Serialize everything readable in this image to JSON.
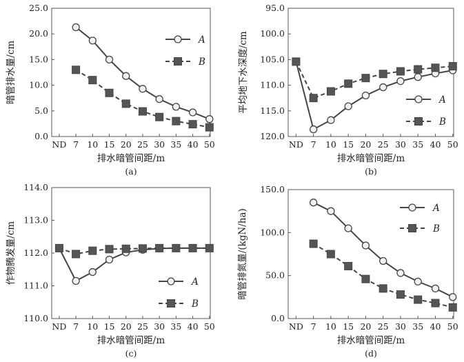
{
  "chart_data": [
    {
      "type": "line",
      "panel_label": "(a)",
      "xlabel": "排水暗管间距/m",
      "ylabel": "暗管排水量/cm",
      "categories": [
        "ND",
        "7",
        "10",
        "15",
        "20",
        "25",
        "30",
        "35",
        "40",
        "50"
      ],
      "ylim": [
        0,
        25
      ],
      "yticks": [
        "0.0",
        "5.0",
        "10.0",
        "15.0",
        "20.0",
        "25.0"
      ],
      "y_reversed": false,
      "legend_position": "top-right",
      "series": [
        {
          "name": "A",
          "style": "solid-circle",
          "values": [
            null,
            21.3,
            18.7,
            15.0,
            11.8,
            9.3,
            7.3,
            5.8,
            4.7,
            3.4
          ]
        },
        {
          "name": "B",
          "style": "dashed-square",
          "values": [
            null,
            13.0,
            11.0,
            8.5,
            6.4,
            4.9,
            3.8,
            3.0,
            2.4,
            1.8
          ]
        }
      ]
    },
    {
      "type": "line",
      "panel_label": "(b)",
      "xlabel": "排水暗管间距/m",
      "ylabel": "平均地下水深度/cm",
      "categories": [
        "ND",
        "7",
        "10",
        "15",
        "20",
        "25",
        "30",
        "35",
        "40",
        "50"
      ],
      "ylim": [
        95,
        120
      ],
      "yticks": [
        "95.0",
        "100.0",
        "105.0",
        "110.0",
        "115.0",
        "120.0"
      ],
      "y_reversed": true,
      "legend_position": "middle-right",
      "series": [
        {
          "name": "A",
          "style": "solid-circle",
          "values": [
            105.4,
            118.6,
            116.8,
            114.1,
            112.0,
            110.4,
            109.2,
            108.4,
            107.7,
            107.1
          ]
        },
        {
          "name": "B",
          "style": "dashed-square",
          "values": [
            105.4,
            112.5,
            111.2,
            109.7,
            108.6,
            107.8,
            107.3,
            106.9,
            106.6,
            106.3
          ]
        }
      ]
    },
    {
      "type": "line",
      "panel_label": "(c)",
      "xlabel": "排水暗管间距/m",
      "ylabel": "作物腾发量/cm",
      "categories": [
        "ND",
        "7",
        "10",
        "15",
        "20",
        "25",
        "30",
        "35",
        "40",
        "50"
      ],
      "ylim": [
        110,
        114
      ],
      "yticks": [
        "110.0",
        "111.0",
        "112.0",
        "113.0",
        "114.0"
      ],
      "y_reversed": false,
      "legend_position": "bottom-right",
      "series": [
        {
          "name": "A",
          "style": "solid-circle",
          "values": [
            112.15,
            111.15,
            111.42,
            111.8,
            112.02,
            112.1,
            112.14,
            112.15,
            112.15,
            112.15
          ]
        },
        {
          "name": "B",
          "style": "dashed-square",
          "values": [
            112.15,
            111.97,
            112.07,
            112.12,
            112.13,
            112.14,
            112.15,
            112.15,
            112.15,
            112.15
          ]
        }
      ]
    },
    {
      "type": "line",
      "panel_label": "(d)",
      "xlabel": "排水暗管间距/m",
      "ylabel": "暗管排氮量/(kgN/ha)",
      "categories": [
        "ND",
        "7",
        "10",
        "15",
        "20",
        "25",
        "30",
        "35",
        "40",
        "50"
      ],
      "ylim": [
        0,
        150
      ],
      "yticks": [
        "0.0",
        "50.0",
        "100.0",
        "150.0"
      ],
      "y_reversed": false,
      "legend_position": "top-right",
      "series": [
        {
          "name": "A",
          "style": "solid-circle",
          "values": [
            null,
            135.0,
            125.0,
            105.0,
            85.0,
            67.0,
            53.0,
            43.0,
            35.0,
            25.0
          ]
        },
        {
          "name": "B",
          "style": "dashed-square",
          "values": [
            null,
            87.0,
            75.0,
            61.0,
            46.0,
            35.0,
            28.0,
            22.0,
            18.0,
            13.0
          ]
        }
      ]
    }
  ]
}
